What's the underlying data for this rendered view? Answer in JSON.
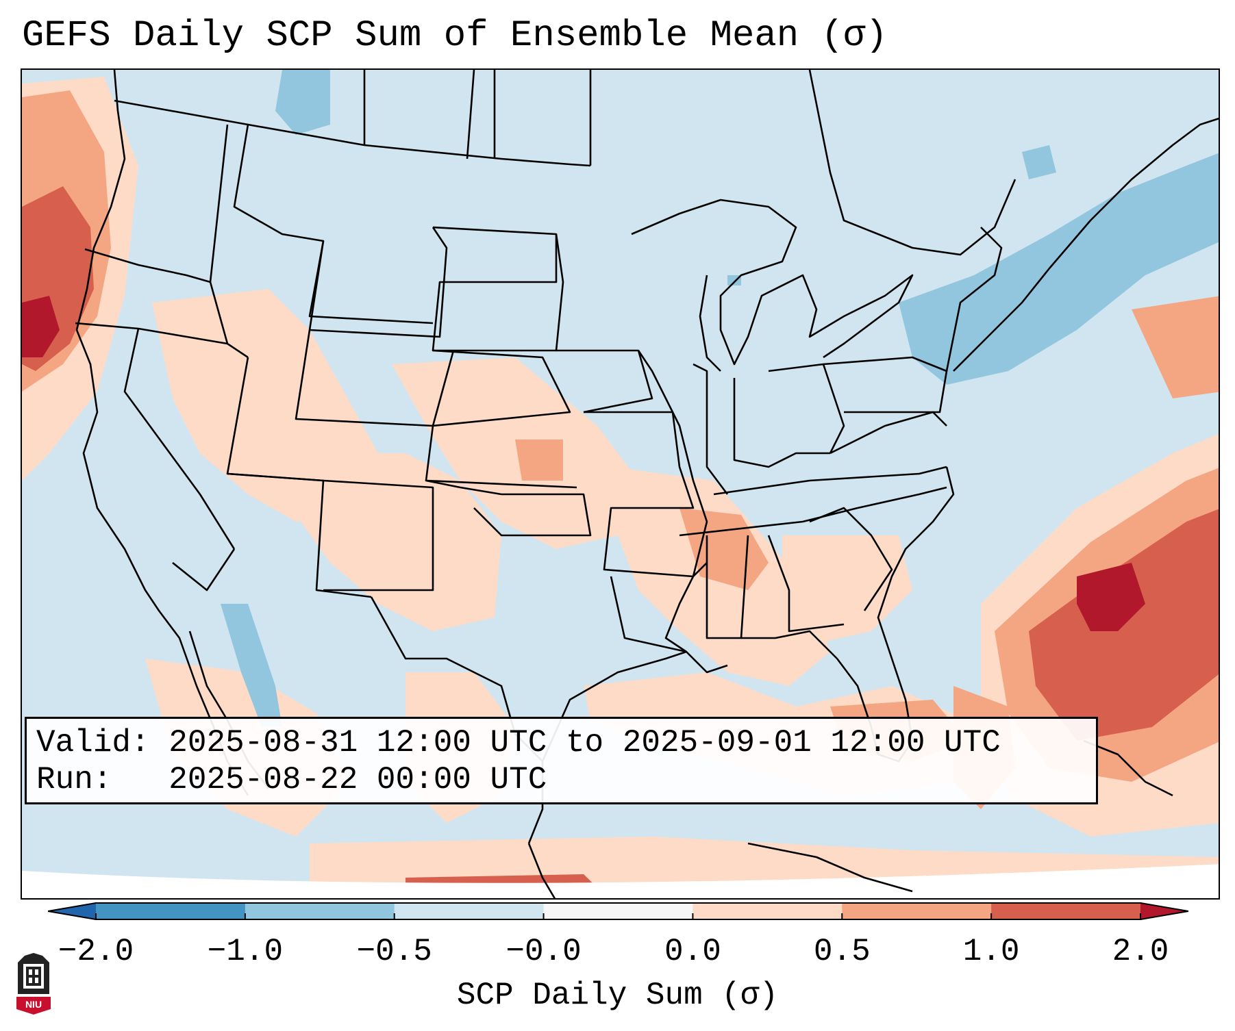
{
  "title": "GEFS Daily SCP Sum of Ensemble Mean (σ)",
  "info": {
    "valid_label": "Valid:",
    "valid_value": "2025-08-31 12:00 UTC to 2025-09-01 12:00 UTC",
    "run_label": "Run:",
    "run_value": "2025-08-22 00:00 UTC"
  },
  "colorbar": {
    "label": "SCP Daily Sum (σ)",
    "ticks": [
      "−2.0",
      "−1.0",
      "−0.5",
      "−0.0",
      "0.0",
      "0.5",
      "1.0",
      "2.0"
    ],
    "bins": [
      {
        "from": -2.0,
        "to": -1.0,
        "color": "#4393c3"
      },
      {
        "from": -1.0,
        "to": -0.5,
        "color": "#92c5de"
      },
      {
        "from": -0.5,
        "to": 0.0,
        "color": "#d1e5f0"
      },
      {
        "from": 0.0,
        "to": 0.0,
        "color": "#f7f7f7"
      },
      {
        "from": 0.0,
        "to": 0.5,
        "color": "#fddbc7"
      },
      {
        "from": 0.5,
        "to": 1.0,
        "color": "#f4a582"
      },
      {
        "from": 1.0,
        "to": 2.0,
        "color": "#d6604d"
      }
    ],
    "under_color": "#2166ac",
    "over_color": "#b2182b"
  },
  "colors": {
    "ocean_base": "#d1e5f0",
    "land_base": "#d1e5f0",
    "light_red": "#fddbc7",
    "mid_red": "#f4a582",
    "strong_red": "#d6604d",
    "deep_red": "#b2182b",
    "light_blue": "#92c5de",
    "borders": "#000000"
  },
  "logo_text": "NIU"
}
